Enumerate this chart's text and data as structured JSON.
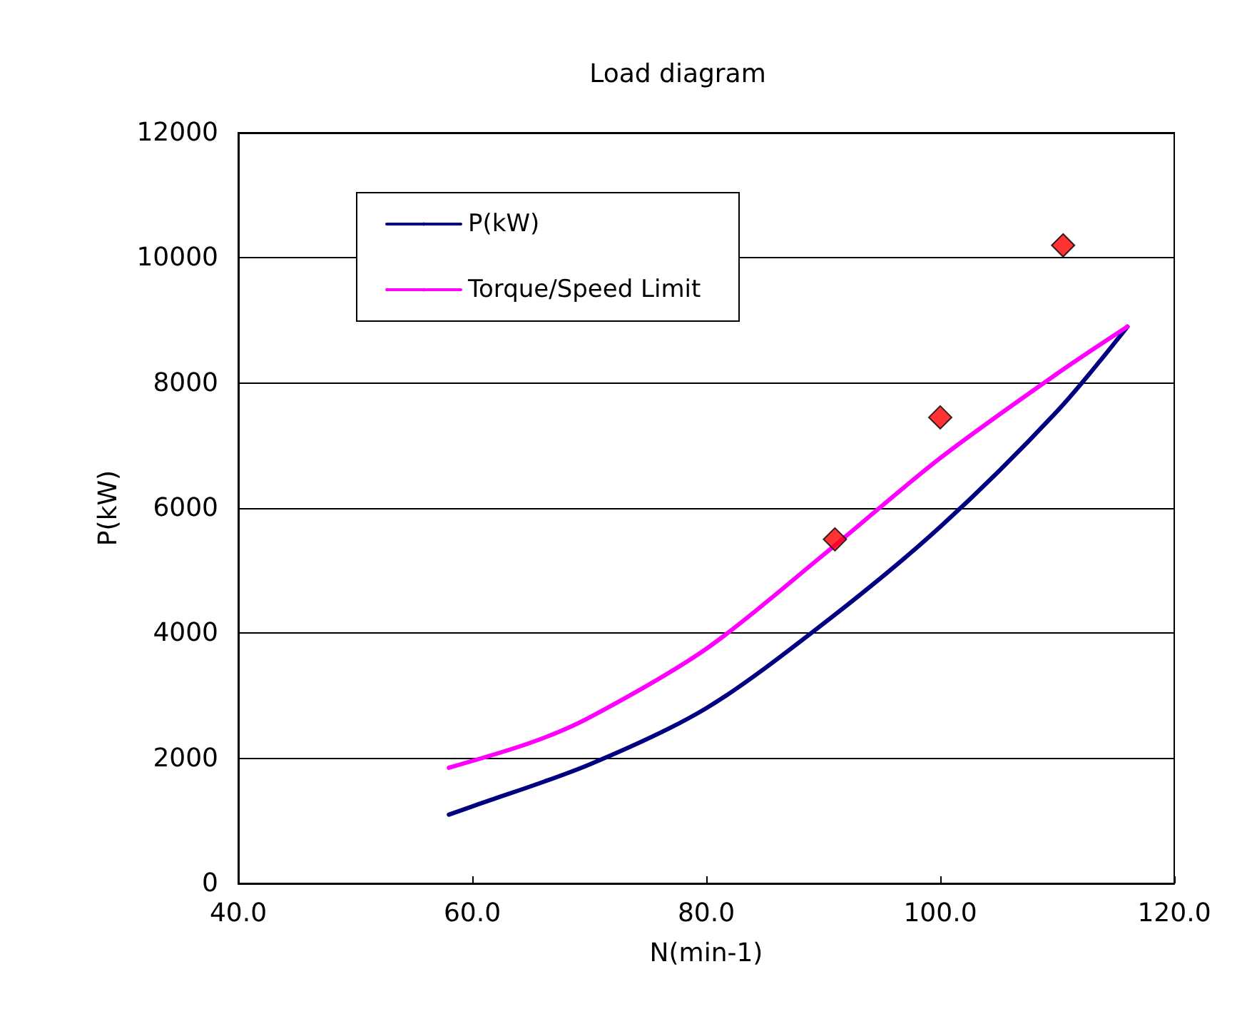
{
  "chart_data": {
    "type": "line",
    "title": "Load diagram",
    "xlabel": "N(min-1)",
    "ylabel": "P(kW)",
    "xlim": [
      40,
      120
    ],
    "xticks": [
      {
        "value": 40,
        "label": "40.0"
      },
      {
        "value": 60,
        "label": "60.0"
      },
      {
        "value": 80,
        "label": "80.0"
      },
      {
        "value": 100,
        "label": "100.0"
      },
      {
        "value": 120,
        "label": "120.0"
      }
    ],
    "ylim": [
      0,
      12000
    ],
    "yticks": [
      0,
      2000,
      4000,
      6000,
      8000,
      10000,
      12000
    ],
    "grid": "y",
    "legend": "top left",
    "marker": "none",
    "line_style": "solid",
    "series": [
      {
        "name": "P(kW)",
        "color": "#000080",
        "x": [
          58,
          60,
          70,
          80,
          90,
          100,
          110,
          116
        ],
        "values": [
          1100,
          1230,
          1900,
          2800,
          4150,
          5700,
          7550,
          8900
        ]
      },
      {
        "name": "Torque/Speed Limit",
        "color": "#ff00ff",
        "x": [
          58,
          65,
          70,
          80,
          90,
          100,
          110,
          116
        ],
        "values": [
          1850,
          2250,
          2650,
          3750,
          5250,
          6800,
          8150,
          8900
        ]
      },
      {
        "type": "scatter",
        "marker": "diamond",
        "color": "#ff0000",
        "x": [
          91,
          100,
          110.5
        ],
        "values": [
          5500,
          7450,
          10200
        ]
      }
    ]
  }
}
